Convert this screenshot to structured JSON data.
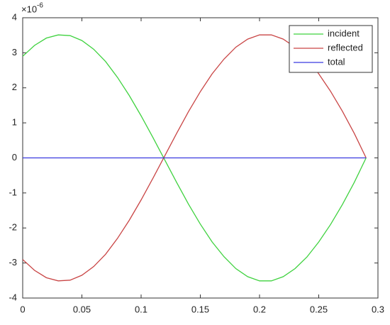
{
  "chart_data": {
    "type": "line",
    "y_multiplier": {
      "base": "×10",
      "exponent": "-6"
    },
    "x": [
      0,
      0.01,
      0.02,
      0.03,
      0.04,
      0.05,
      0.06,
      0.07,
      0.08,
      0.09,
      0.1,
      0.11,
      0.12,
      0.13,
      0.14,
      0.15,
      0.16,
      0.17,
      0.18,
      0.19,
      0.2,
      0.21,
      0.22,
      0.23,
      0.24,
      0.25,
      0.26,
      0.27,
      0.28,
      0.29
    ],
    "series": [
      {
        "name": "incident",
        "color": "#3fd23f",
        "values": [
          2.9,
          3.21,
          3.42,
          3.51,
          3.49,
          3.35,
          3.1,
          2.75,
          2.3,
          1.78,
          1.2,
          0.58,
          -0.06,
          -0.7,
          -1.32,
          -1.89,
          -2.4,
          -2.82,
          -3.16,
          -3.39,
          -3.51,
          -3.51,
          -3.39,
          -3.16,
          -2.83,
          -2.4,
          -1.9,
          -1.33,
          -0.7,
          0
        ]
      },
      {
        "name": "reflected",
        "color": "#c94545",
        "values": [
          -2.9,
          -3.21,
          -3.42,
          -3.51,
          -3.49,
          -3.35,
          -3.1,
          -2.75,
          -2.3,
          -1.78,
          -1.2,
          -0.58,
          0.06,
          0.7,
          1.32,
          1.89,
          2.4,
          2.82,
          3.16,
          3.39,
          3.51,
          3.51,
          3.39,
          3.16,
          2.83,
          2.4,
          1.9,
          1.33,
          0.7,
          0
        ]
      },
      {
        "name": "total",
        "color": "#3a3ae0",
        "values": [
          0,
          0,
          0,
          0,
          0,
          0,
          0,
          0,
          0,
          0,
          0,
          0,
          0,
          0,
          0,
          0,
          0,
          0,
          0,
          0,
          0,
          0,
          0,
          0,
          0,
          0,
          0,
          0,
          0,
          0
        ]
      }
    ],
    "xlim": [
      0,
      0.3
    ],
    "xticks": [
      0,
      0.05,
      0.1,
      0.15,
      0.2,
      0.25,
      0.3
    ],
    "ylim": [
      -4,
      4
    ],
    "yticks": [
      -4,
      -3,
      -2,
      -1,
      0,
      1,
      2,
      3,
      4
    ],
    "grid": false,
    "legend": "top-right"
  }
}
